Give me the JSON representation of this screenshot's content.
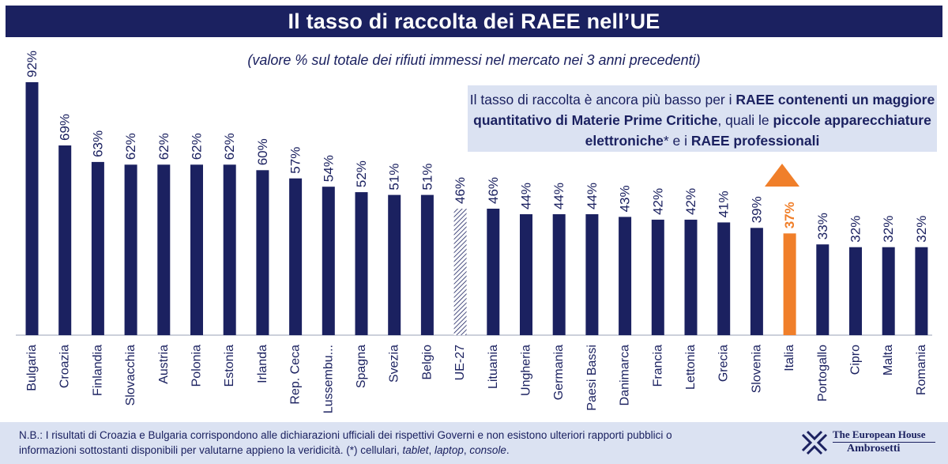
{
  "title": "Il tasso di raccolta dei RAEE nell’UE",
  "subtitle": "(valore % sul totale dei rifiuti immessi nel mercato nei 3 anni precedenti)",
  "callout": {
    "t1": "Il tasso di raccolta è ancora più basso per i ",
    "b1": "RAEE contenenti un maggiore quantitativo di Materie Prime Critiche",
    "t2": ", quali le ",
    "b2": "piccole apparecchiature elettroniche",
    "t3": "* e i ",
    "b3": "RAEE professionali"
  },
  "footnote": {
    "line1": "N.B.:  I risultati di Croazia e Bulgaria corrispondono alle dichiarazioni ufficiali dei rispettivi Governi e non esistono ulteriori rapporti pubblici o",
    "line2_a": "informazioni sottostanti disponibili per valutarne appieno la veridicità. (*) cellulari, ",
    "line2_tablet": "tablet",
    "line2_sep1": ", ",
    "line2_laptop": "laptop",
    "line2_sep2": ", ",
    "line2_console": "console",
    "line2_end": "."
  },
  "logo": {
    "line1": "The European House",
    "line2": "Ambrosetti"
  },
  "colors": {
    "navy": "#1b2160",
    "highlight": "#f07f2a",
    "hatch": "#1b2160",
    "panel": "#dbe2f2"
  },
  "chart_data": {
    "type": "bar",
    "categories": [
      "Bulgaria",
      "Croazia",
      "Finlandia",
      "Slovacchia",
      "Austria",
      "Polonia",
      "Estonia",
      "Irlanda",
      "Rep. Ceca",
      "Lussembu...",
      "Spagna",
      "Svezia",
      "Belgio",
      "UE-27",
      "Lituania",
      "Ungheria",
      "Germania",
      "Paesi Bassi",
      "Danimarca",
      "Francia",
      "Lettonia",
      "Grecia",
      "Slovenia",
      "Italia",
      "Portogallo",
      "Cipro",
      "Malta",
      "Romania"
    ],
    "values": [
      92,
      69,
      63,
      62,
      62,
      62,
      62,
      60,
      57,
      54,
      52,
      51,
      51,
      46,
      46,
      44,
      44,
      44,
      43,
      42,
      42,
      41,
      39,
      37,
      33,
      32,
      32,
      32
    ],
    "labels": [
      "92%",
      "69%",
      "63%",
      "62%",
      "62%",
      "62%",
      "62%",
      "60%",
      "57%",
      "54%",
      "52%",
      "51%",
      "51%",
      "46%",
      "46%",
      "44%",
      "44%",
      "44%",
      "43%",
      "42%",
      "42%",
      "41%",
      "39%",
      "37%",
      "33%",
      "32%",
      "32%",
      "32%"
    ],
    "highlight": "Italia",
    "average": "UE-27",
    "ylim": [
      0,
      92
    ],
    "grid": false,
    "legend": "none"
  }
}
